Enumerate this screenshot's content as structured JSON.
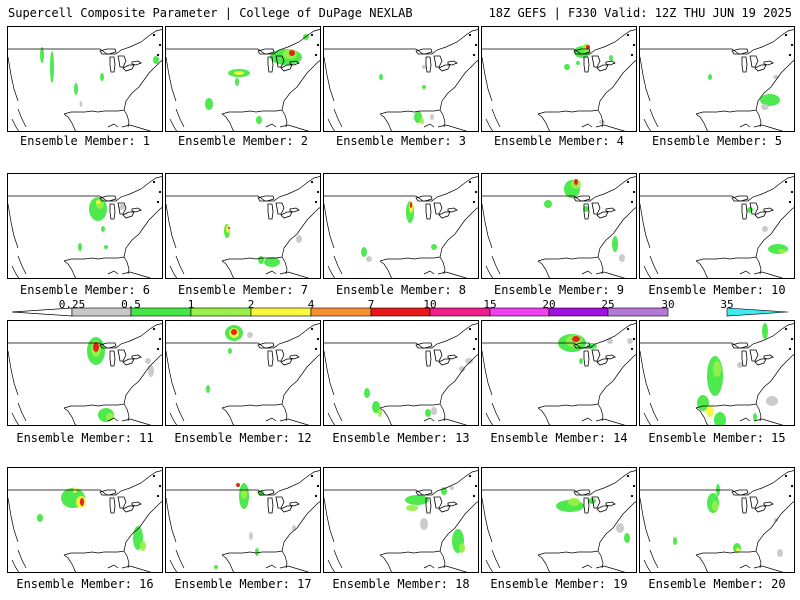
{
  "header": {
    "title": "Supercell Composite Parameter | College of DuPage NEXLAB",
    "run_info": "18Z GEFS | F330 Valid: 12Z THU JUN 19 2025"
  },
  "colorbar": {
    "labels": [
      "0.25",
      "0.5",
      "1",
      "2",
      "4",
      "7",
      "10",
      "15",
      "20",
      "25",
      "30",
      "35"
    ],
    "colors": [
      "#c8c8c8",
      "#44e844",
      "#98f048",
      "#f8f840",
      "#f89030",
      "#e81818",
      "#f01c8c",
      "#f040f0",
      "#a010e0",
      "#b478d8",
      "#40e8f0"
    ]
  },
  "members": [
    {
      "label": "Ensemble Member: 1"
    },
    {
      "label": "Ensemble Member: 2"
    },
    {
      "label": "Ensemble Member: 3"
    },
    {
      "label": "Ensemble Member: 4"
    },
    {
      "label": "Ensemble Member: 5"
    },
    {
      "label": "Ensemble Member: 6"
    },
    {
      "label": "Ensemble Member: 7"
    },
    {
      "label": "Ensemble Member: 8"
    },
    {
      "label": "Ensemble Member: 9"
    },
    {
      "label": "Ensemble Member: 10"
    },
    {
      "label": "Ensemble Member: 11"
    },
    {
      "label": "Ensemble Member: 12"
    },
    {
      "label": "Ensemble Member: 13"
    },
    {
      "label": "Ensemble Member: 14"
    },
    {
      "label": "Ensemble Member: 15"
    },
    {
      "label": "Ensemble Member: 16"
    },
    {
      "label": "Ensemble Member: 17"
    },
    {
      "label": "Ensemble Member: 18"
    },
    {
      "label": "Ensemble Member: 19"
    },
    {
      "label": "Ensemble Member: 20"
    }
  ]
}
